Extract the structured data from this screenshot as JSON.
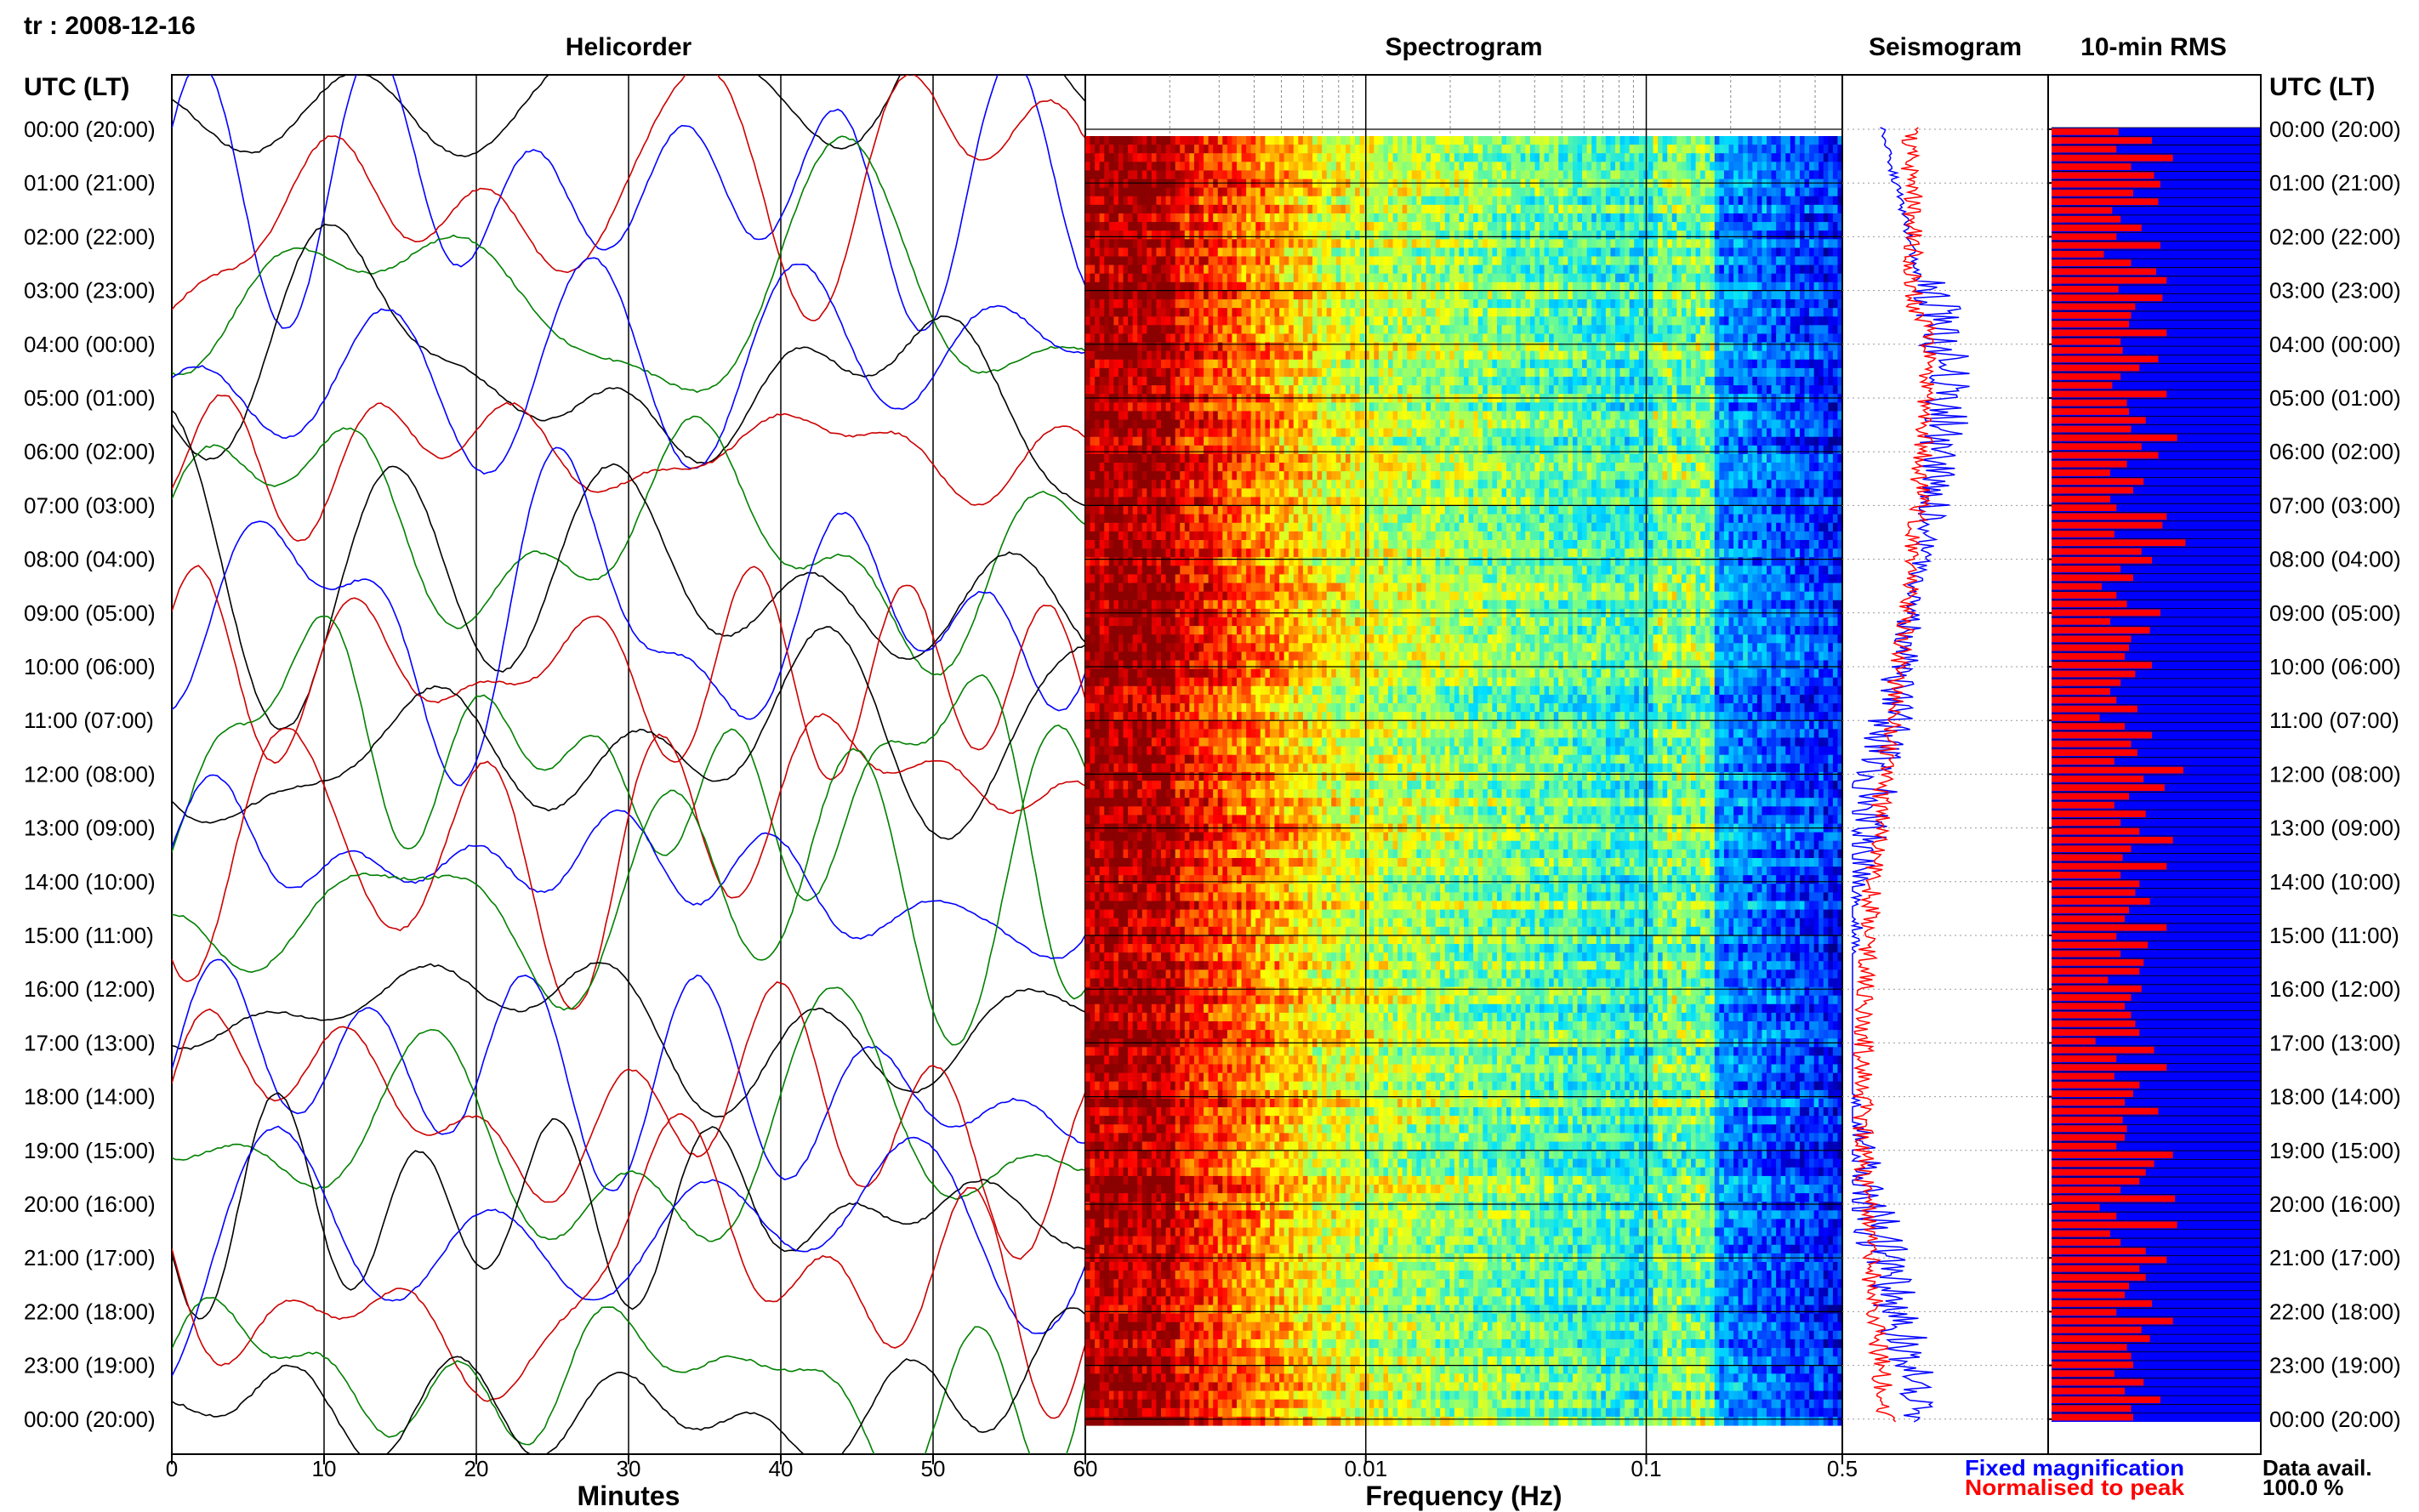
{
  "header": {
    "station_date": "tr : 2008-12-16"
  },
  "panels": {
    "helicorder_title": "Helicorder",
    "spectrogram_title": "Spectrogram",
    "seismogram_title": "Seismogram",
    "rms_title": "10-min RMS"
  },
  "axes": {
    "time_header_left": "UTC (LT)",
    "time_header_right": "UTC (LT)",
    "minutes_label": "Minutes",
    "frequency_label": "Frequency (Hz)"
  },
  "legend": {
    "fixed": "Fixed magnification",
    "normalised": "Normalised to peak",
    "fixed_color": "#0000ff",
    "normalised_color": "#ff0000"
  },
  "data_avail": {
    "label": "Data avail.",
    "value": "100.0 %"
  },
  "chart_data": [
    {
      "type": "line",
      "panel": "Helicorder",
      "xlabel": "Minutes",
      "xlim": [
        0,
        60
      ],
      "x_ticks": [
        "0",
        "10",
        "20",
        "30",
        "40",
        "50",
        "60"
      ],
      "trace_colors": [
        "#000000",
        "#0000ff",
        "#cc0000",
        "#008000"
      ],
      "hour_labels": [
        "00:00 (20:00)",
        "01:00 (21:00)",
        "02:00 (22:00)",
        "03:00 (23:00)",
        "04:00 (00:00)",
        "05:00 (01:00)",
        "06:00 (02:00)",
        "07:00 (03:00)",
        "08:00 (04:00)",
        "09:00 (05:00)",
        "10:00 (06:00)",
        "11:00 (07:00)",
        "12:00 (08:00)",
        "13:00 (09:00)",
        "14:00 (10:00)",
        "15:00 (11:00)",
        "16:00 (12:00)",
        "17:00 (13:00)",
        "18:00 (14:00)",
        "19:00 (15:00)",
        "20:00 (16:00)",
        "21:00 (17:00)",
        "22:00 (18:00)",
        "23:00 (19:00)",
        "00:00 (20:00)"
      ]
    },
    {
      "type": "heatmap",
      "panel": "Spectrogram",
      "xlabel": "Frequency (Hz)",
      "x_scale": "log",
      "xlim": [
        0.001,
        0.5
      ],
      "x_ticks": [
        {
          "value": 0.01,
          "label": "0.01"
        },
        {
          "value": 0.1,
          "label": "0.1"
        },
        {
          "value": 0.5,
          "label": "0.5"
        }
      ],
      "colormap": [
        "#00008b",
        "#0000ff",
        "#0080ff",
        "#00e0ff",
        "#80ff80",
        "#ffff00",
        "#ff8000",
        "#ff0000",
        "#8b0000"
      ]
    },
    {
      "type": "line",
      "panel": "Seismogram",
      "series": [
        {
          "name": "Fixed magnification",
          "color": "#0000ff"
        },
        {
          "name": "Normalised to peak",
          "color": "#ff0000"
        }
      ]
    },
    {
      "type": "bar",
      "panel": "10-min RMS",
      "orientation": "horizontal",
      "bar_color": "#ff0000",
      "background_color": "#0000ff",
      "values": [
        0.32,
        0.48,
        0.31,
        0.58,
        0.38,
        0.49,
        0.52,
        0.39,
        0.51,
        0.29,
        0.33,
        0.43,
        0.31,
        0.52,
        0.25,
        0.38,
        0.5,
        0.55,
        0.32,
        0.53,
        0.4,
        0.38,
        0.37,
        0.55,
        0.33,
        0.34,
        0.51,
        0.42,
        0.33,
        0.29,
        0.55,
        0.36,
        0.37,
        0.45,
        0.38,
        0.6,
        0.43,
        0.51,
        0.36,
        0.28,
        0.44,
        0.39,
        0.28,
        0.31,
        0.55,
        0.53,
        0.3,
        0.64,
        0.43,
        0.48,
        0.33,
        0.39,
        0.24,
        0.31,
        0.36,
        0.52,
        0.28,
        0.47,
        0.38,
        0.37,
        0.35,
        0.48,
        0.4,
        0.33,
        0.28,
        0.31,
        0.41,
        0.23,
        0.35,
        0.48,
        0.38,
        0.41,
        0.3,
        0.63,
        0.44,
        0.54,
        0.37,
        0.3,
        0.45,
        0.33,
        0.42,
        0.58,
        0.38,
        0.34,
        0.55,
        0.33,
        0.42,
        0.4,
        0.47,
        0.37,
        0.35,
        0.55,
        0.31,
        0.46,
        0.33,
        0.44,
        0.42,
        0.27,
        0.43,
        0.38,
        0.35,
        0.38,
        0.4,
        0.42,
        0.21,
        0.49,
        0.31,
        0.55,
        0.3,
        0.42,
        0.39,
        0.35,
        0.51,
        0.34,
        0.36,
        0.35,
        0.31,
        0.58,
        0.49,
        0.45,
        0.42,
        0.33,
        0.59,
        0.23,
        0.31,
        0.6,
        0.28,
        0.33,
        0.45,
        0.55,
        0.42,
        0.45,
        0.37,
        0.35,
        0.48,
        0.31,
        0.58,
        0.43,
        0.47,
        0.36,
        0.38,
        0.39,
        0.3,
        0.44,
        0.35,
        0.52,
        0.38,
        0.39
      ]
    }
  ]
}
